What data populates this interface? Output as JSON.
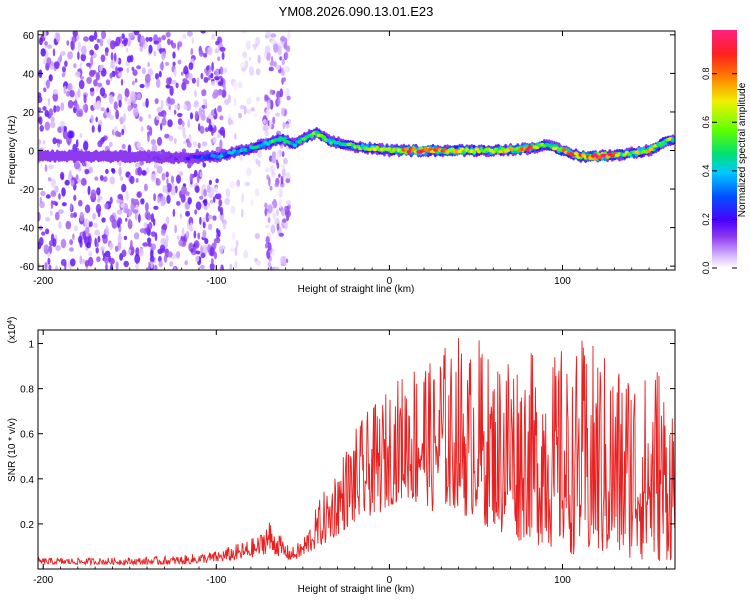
{
  "title": "YM08.2026.090.13.01.E23",
  "chart_data": [
    {
      "type": "heatmap",
      "title": "YM08.2026.090.13.01.E23",
      "xlabel": "Height of straight line (km)",
      "ylabel": "Frequency (Hz)",
      "xlim": [
        -203,
        165
      ],
      "ylim": [
        -62,
        62
      ],
      "xticks": [
        -200,
        -100,
        0,
        100
      ],
      "yticks": [
        60,
        40,
        20,
        0,
        -20,
        -40,
        -60
      ],
      "colorbar": {
        "label": "Normalized spectral amplitude",
        "range": [
          0.0,
          0.98
        ],
        "ticks": [
          "0.0",
          "0.2",
          "0.4",
          "0.6",
          "0.8"
        ],
        "colormap": [
          "#ffffff",
          "#d8b8ff",
          "#8f3cf0",
          "#4a00ff",
          "#0050ff",
          "#00c8ff",
          "#00e070",
          "#60ff00",
          "#f0f000",
          "#ff8000",
          "#ff2020",
          "#ff2080"
        ]
      },
      "ridge": {
        "x": [
          -203,
          -150,
          -120,
          -100,
          -80,
          -70,
          -62,
          -55,
          -48,
          -42,
          -35,
          -20,
          0,
          20,
          40,
          60,
          80,
          90,
          100,
          110,
          120,
          135,
          150,
          160,
          165
        ],
        "freq": [
          -3,
          -3,
          -4,
          -3,
          1,
          4,
          6,
          3,
          7,
          9,
          5,
          2,
          0,
          0,
          0,
          0,
          1,
          3,
          0,
          -3,
          -3,
          -2,
          0,
          5,
          6
        ],
        "amplitude": [
          0.15,
          0.15,
          0.2,
          0.4,
          0.45,
          0.5,
          0.55,
          0.45,
          0.55,
          0.65,
          0.5,
          0.55,
          0.65,
          0.9,
          0.7,
          0.6,
          0.8,
          0.5,
          0.75,
          0.8,
          0.95,
          0.6,
          0.7,
          0.6,
          0.6
        ]
      },
      "scatter_regions": [
        {
          "xrange": [
            -203,
            -95
          ],
          "density": "high",
          "amplitude": [
            0.05,
            0.25
          ]
        },
        {
          "xrange": [
            -95,
            -75
          ],
          "density": "low",
          "amplitude": [
            0.02,
            0.1
          ]
        },
        {
          "xrange": [
            -72,
            -58
          ],
          "density": "medium",
          "amplitude": [
            0.03,
            0.2
          ]
        }
      ]
    },
    {
      "type": "line",
      "title": "",
      "xlabel": "Height of straight line (km)",
      "ylabel": "SNR (10 * v/v)",
      "multiplier": "(x10",
      "multiplier_exponent": "4",
      "multiplier_close": ")",
      "xlim": [
        -203,
        165
      ],
      "ylim": [
        0,
        1.06
      ],
      "xticks": [
        -200,
        -100,
        0,
        100
      ],
      "yticks": [
        0.2,
        0.4,
        0.6,
        0.8,
        1.0
      ],
      "color": "#e82020",
      "series": [
        {
          "name": "SNR",
          "x": [
            -203,
            -180,
            -150,
            -120,
            -100,
            -85,
            -75,
            -70,
            -68,
            -65,
            -62,
            -58,
            -55,
            -50,
            -45,
            -40,
            -35,
            -30,
            -25,
            -20,
            -15,
            -10,
            -5,
            0,
            5,
            10,
            15,
            20,
            25,
            30,
            35,
            40,
            45,
            50,
            55,
            60,
            65,
            70,
            75,
            80,
            85,
            90,
            95,
            100,
            105,
            110,
            115,
            120,
            125,
            130,
            135,
            140,
            145,
            150,
            155,
            160,
            165
          ],
          "envelope_max": [
            0.05,
            0.05,
            0.05,
            0.06,
            0.08,
            0.12,
            0.15,
            0.24,
            0.2,
            0.18,
            0.14,
            0.1,
            0.1,
            0.14,
            0.22,
            0.32,
            0.38,
            0.48,
            0.55,
            0.62,
            0.68,
            0.72,
            0.75,
            0.82,
            0.85,
            0.9,
            0.95,
            1.0,
            0.88,
            1.05,
            0.95,
            1.05,
            0.95,
            1.05,
            1.0,
            0.9,
            1.0,
            1.05,
            0.95,
            1.0,
            0.92,
            1.05,
            0.95,
            1.0,
            0.85,
            1.05,
            0.95,
            1.05,
            0.95,
            0.95,
            0.92,
            0.98,
            0.9,
            0.85,
            0.97,
            0.82,
            0.8
          ],
          "envelope_min": [
            0.02,
            0.02,
            0.02,
            0.02,
            0.03,
            0.04,
            0.06,
            0.07,
            0.07,
            0.06,
            0.05,
            0.04,
            0.04,
            0.05,
            0.08,
            0.1,
            0.12,
            0.15,
            0.18,
            0.2,
            0.22,
            0.24,
            0.25,
            0.28,
            0.3,
            0.32,
            0.28,
            0.3,
            0.25,
            0.3,
            0.25,
            0.28,
            0.22,
            0.25,
            0.18,
            0.2,
            0.15,
            0.18,
            0.12,
            0.15,
            0.1,
            0.12,
            0.08,
            0.1,
            0.06,
            0.08,
            0.05,
            0.06,
            0.05,
            0.05,
            0.04,
            0.05,
            0.04,
            0.04,
            0.03,
            0.04,
            0.03
          ]
        }
      ]
    }
  ]
}
